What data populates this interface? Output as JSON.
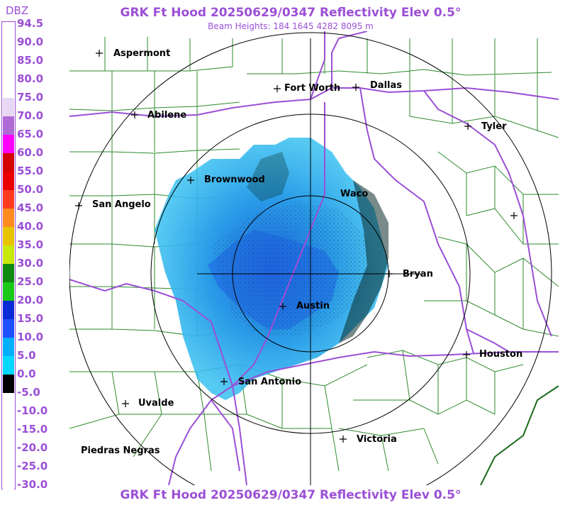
{
  "title": "GRK Ft Hood 20250629/0347 Reflectivity Elev 0.5°",
  "subtitle": "Beam Heights: 184 1645 4282 8095 m",
  "legend": {
    "unit": "DBZ",
    "labels": [
      "94.5",
      "90.0",
      "85.0",
      "80.0",
      "75.0",
      "70.0",
      "65.0",
      "60.0",
      "55.0",
      "50.0",
      "45.0",
      "40.0",
      "35.0",
      "30.0",
      "25.0",
      "20.0",
      "15.0",
      "10.0",
      "5.0",
      "0.0",
      "-5.0",
      "-10.0",
      "-15.0",
      "-20.0",
      "-25.0",
      "-30.0"
    ],
    "colors": [
      "#ffffff",
      "#ffffff",
      "#ffffff",
      "#ffffff",
      "#e8d8f5",
      "#b06bd6",
      "#ff00ff",
      "#d40000",
      "#e80000",
      "#ff3b1e",
      "#ff8c1e",
      "#e8c400",
      "#c8e80a",
      "#0f8a0f",
      "#19c819",
      "#0a2ad6",
      "#1e50ff",
      "#00b0ff",
      "#00d8ff",
      "#000000",
      "#ffffff",
      "#ffffff",
      "#ffffff",
      "#ffffff",
      "#ffffff",
      "#ffffff"
    ]
  },
  "cities": [
    {
      "name": "Aspermont"
    },
    {
      "name": "Fort Worth"
    },
    {
      "name": "Dallas"
    },
    {
      "name": "Abilene"
    },
    {
      "name": "Tyler"
    },
    {
      "name": "Brownwood"
    },
    {
      "name": "Waco"
    },
    {
      "name": "San Angelo"
    },
    {
      "name": "Bryan"
    },
    {
      "name": "Austin"
    },
    {
      "name": "Houston"
    },
    {
      "name": "San Antonio"
    },
    {
      "name": "Uvalde"
    },
    {
      "name": "Victoria"
    },
    {
      "name": "Piedras Negras"
    }
  ],
  "colors": {
    "title": "#9b4fd6",
    "county_lines": "#2e8b2e",
    "highways": "#9b4fd6",
    "range_rings": "#000000",
    "echo_light": "#38b8f0",
    "echo_mid": "#1e73e8"
  }
}
